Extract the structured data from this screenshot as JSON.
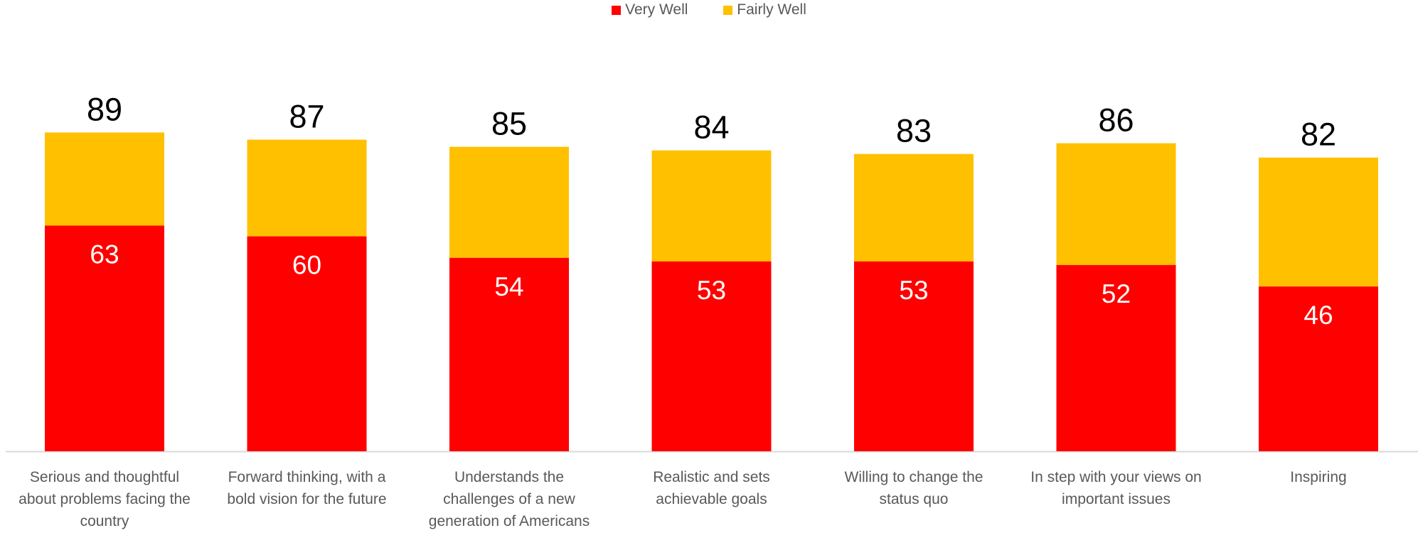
{
  "chart_data": {
    "type": "bar",
    "stacked": true,
    "categories": [
      "Serious and thoughtful about problems facing the country",
      "Forward thinking, with a bold vision for the future",
      "Understands the challenges of a new generation of Americans",
      "Realistic and sets achievable goals",
      "Willing to change the status quo",
      "In step with your views on important issues",
      "Inspiring"
    ],
    "category_lines": [
      [
        "Serious and thoughtful",
        "about problems facing the",
        "country"
      ],
      [
        "Forward thinking, with a",
        "bold vision for the future"
      ],
      [
        "Understands the",
        "challenges of a new",
        "generation of Americans"
      ],
      [
        "Realistic and sets",
        "achievable goals"
      ],
      [
        "Willing to change the",
        "status quo"
      ],
      [
        "In step with your views on",
        "important issues"
      ],
      [
        "Inspiring"
      ]
    ],
    "series": [
      {
        "name": "Very Well",
        "values": [
          63,
          60,
          54,
          53,
          53,
          52,
          46
        ],
        "color": "#FF0000"
      },
      {
        "name": "Fairly Well",
        "values": [
          26,
          27,
          31,
          31,
          30,
          34,
          36
        ],
        "color": "#FFC000"
      }
    ],
    "totals": [
      89,
      87,
      85,
      84,
      83,
      86,
      82
    ],
    "ylim": [
      0,
      100
    ],
    "grid": false,
    "legend_position": "top-center",
    "axis_color": "#D9D9D9",
    "label_color_inside": "#FFFFFF",
    "label_color_total": "#000000",
    "category_label_color": "#595959"
  }
}
